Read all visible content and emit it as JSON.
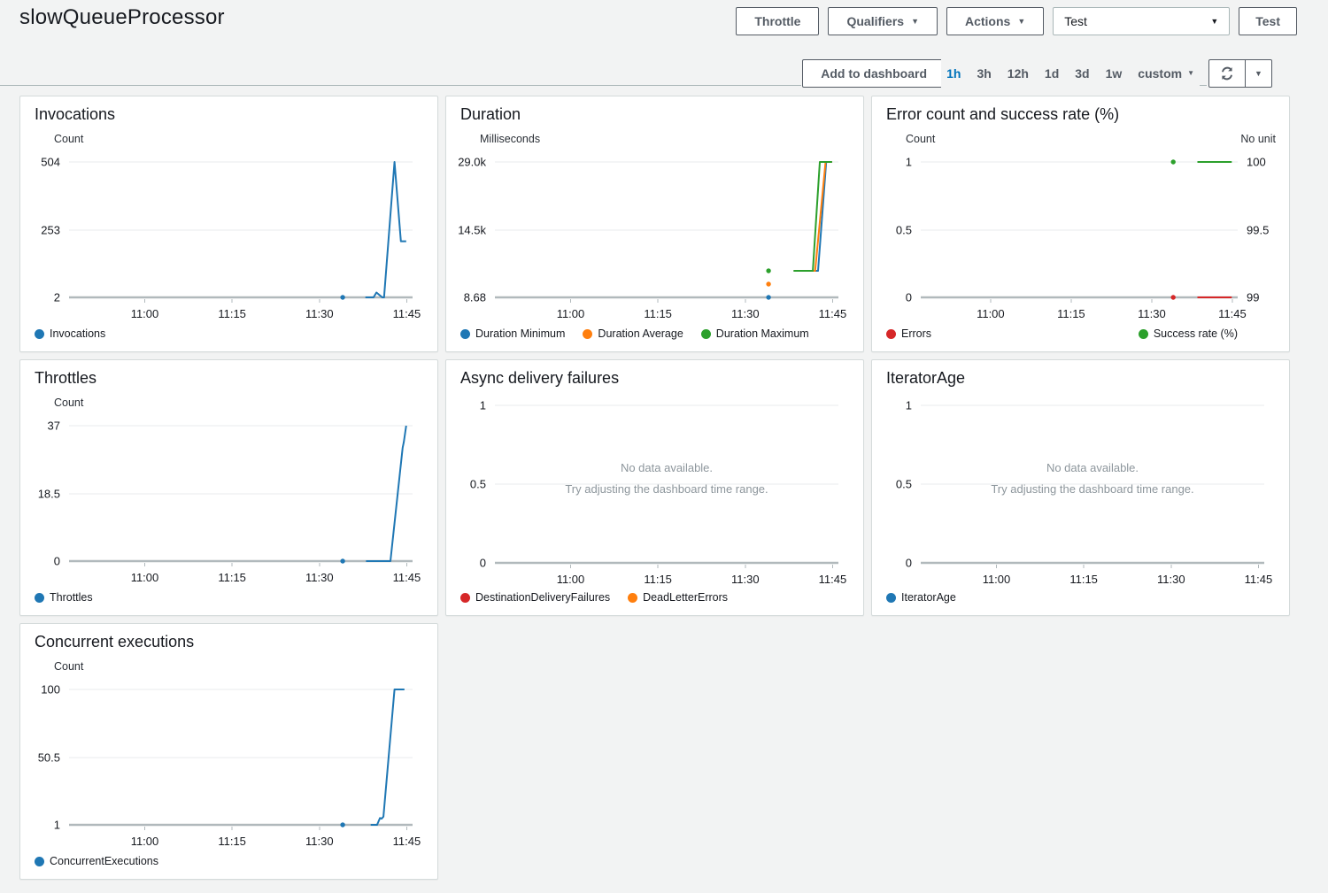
{
  "colors": {
    "accent_blue": "#0073bb",
    "series_blue": "#1f77b4",
    "series_orange": "#ff7f0e",
    "series_green": "#2ca02c",
    "series_red": "#d62728",
    "page_bg": "#f2f3f3",
    "panel_border": "#d5dbdb",
    "text_primary": "#16191f",
    "text_secondary": "#545b64",
    "grid_line": "#e9ebed",
    "axis_line": "#b1b9bc"
  },
  "icons": {
    "dropdown": "chevron-down",
    "refresh": "refresh"
  },
  "header": {
    "title": "slowQueueProcessor",
    "throttle_label": "Throttle",
    "qualifiers_label": "Qualifiers",
    "actions_label": "Actions",
    "test_event_value": "Test",
    "test_button_label": "Test"
  },
  "toolbar": {
    "add_to_dashboard_label": "Add to dashboard",
    "ranges": [
      "1h",
      "3h",
      "12h",
      "1d",
      "3d",
      "1w"
    ],
    "selected_range": "1h",
    "custom_label": "custom"
  },
  "charts": [
    {
      "type": "line",
      "title": "Invocations",
      "unit_left": "Count",
      "unit_right": null,
      "y_left": {
        "min": 2,
        "max": 504,
        "ticks": [
          "504",
          "253",
          "2"
        ]
      },
      "y_right": null,
      "x_ticks": [
        {
          "t": 0,
          "label": "11:00"
        },
        {
          "t": 15,
          "label": "11:15"
        },
        {
          "t": 30,
          "label": "11:30"
        },
        {
          "t": 45,
          "label": "11:45"
        }
      ],
      "no_data": null,
      "legend": [
        {
          "label": "Invocations",
          "color": "#1f77b4"
        }
      ],
      "legend_right": [],
      "series": [
        {
          "name": "Invocations",
          "color": "#1f77b4",
          "axis": "left",
          "points": [
            [
              37.9,
              2
            ],
            [
              39.3,
              2
            ],
            [
              39.8,
              20
            ],
            [
              40.8,
              2
            ],
            [
              41.1,
              2
            ],
            [
              42.9,
              504
            ],
            [
              44.0,
              210
            ],
            [
              44.9,
              210
            ]
          ],
          "dots": [
            [
              34,
              2
            ]
          ]
        }
      ]
    },
    {
      "type": "line",
      "title": "Duration",
      "unit_left": "Milliseconds",
      "unit_right": null,
      "y_left": {
        "min": 8.68,
        "max": 29000,
        "ticks": [
          "29.0k",
          "14.5k",
          "8.68"
        ]
      },
      "y_right": null,
      "x_ticks": [
        {
          "t": 0,
          "label": "11:00"
        },
        {
          "t": 15,
          "label": "11:15"
        },
        {
          "t": 30,
          "label": "11:30"
        },
        {
          "t": 45,
          "label": "11:45"
        }
      ],
      "no_data": null,
      "legend": [
        {
          "label": "Duration Minimum",
          "color": "#1f77b4"
        },
        {
          "label": "Duration Average",
          "color": "#ff7f0e"
        },
        {
          "label": "Duration Maximum",
          "color": "#2ca02c"
        }
      ],
      "legend_right": [],
      "series": [
        {
          "name": "Duration Minimum",
          "color": "#1f77b4",
          "axis": "left",
          "points": [
            [
              38.3,
              5700
            ],
            [
              42.5,
              5700
            ],
            [
              43.9,
              29000
            ],
            [
              44.9,
              29000
            ]
          ],
          "dots": [
            [
              34,
              8.68
            ]
          ]
        },
        {
          "name": "Duration Average",
          "color": "#ff7f0e",
          "axis": "left",
          "points": [
            [
              38.3,
              5700
            ],
            [
              42.0,
              5700
            ],
            [
              43.8,
              29000
            ],
            [
              44.9,
              29000
            ]
          ],
          "dots": [
            [
              34,
              2850
            ]
          ]
        },
        {
          "name": "Duration Maximum",
          "color": "#2ca02c",
          "axis": "left",
          "points": [
            [
              38.3,
              5700
            ],
            [
              41.6,
              5700
            ],
            [
              42.8,
              29000
            ],
            [
              44.9,
              29000
            ]
          ],
          "dots": [
            [
              34,
              5700
            ]
          ]
        }
      ]
    },
    {
      "type": "line",
      "title": "Error count and success rate (%)",
      "unit_left": "Count",
      "unit_right": "No unit",
      "y_left": {
        "min": 0,
        "max": 1,
        "ticks": [
          "1",
          "0.5",
          "0"
        ]
      },
      "y_right": {
        "min": 99,
        "max": 100,
        "ticks": [
          "100",
          "99.5",
          "99"
        ]
      },
      "x_ticks": [
        {
          "t": 0,
          "label": "11:00"
        },
        {
          "t": 15,
          "label": "11:15"
        },
        {
          "t": 30,
          "label": "11:30"
        },
        {
          "t": 45,
          "label": "11:45"
        }
      ],
      "no_data": null,
      "legend": [
        {
          "label": "Errors",
          "color": "#d62728"
        }
      ],
      "legend_right": [
        {
          "label": "Success rate (%)",
          "color": "#2ca02c"
        }
      ],
      "series": [
        {
          "name": "Errors",
          "color": "#d62728",
          "axis": "left",
          "points": [
            [
              38.5,
              0
            ],
            [
              44.9,
              0
            ]
          ],
          "dots": [
            [
              34,
              0
            ]
          ]
        },
        {
          "name": "Success rate (%)",
          "color": "#2ca02c",
          "axis": "right",
          "points": [
            [
              38.5,
              100
            ],
            [
              44.9,
              100
            ]
          ],
          "dots": [
            [
              34,
              100
            ]
          ]
        }
      ]
    },
    {
      "type": "line",
      "title": "Throttles",
      "unit_left": "Count",
      "unit_right": null,
      "y_left": {
        "min": 0,
        "max": 37,
        "ticks": [
          "37",
          "18.5",
          "0"
        ]
      },
      "y_right": null,
      "x_ticks": [
        {
          "t": 0,
          "label": "11:00"
        },
        {
          "t": 15,
          "label": "11:15"
        },
        {
          "t": 30,
          "label": "11:30"
        },
        {
          "t": 45,
          "label": "11:45"
        }
      ],
      "no_data": null,
      "legend": [
        {
          "label": "Throttles",
          "color": "#1f77b4"
        }
      ],
      "legend_right": [],
      "series": [
        {
          "name": "Throttles",
          "color": "#1f77b4",
          "axis": "left",
          "points": [
            [
              38.0,
              0
            ],
            [
              42.2,
              0
            ],
            [
              44.3,
              31
            ],
            [
              44.5,
              32.5
            ],
            [
              44.9,
              37
            ]
          ],
          "dots": [
            [
              34,
              0
            ]
          ]
        }
      ]
    },
    {
      "type": "line",
      "title": "Async delivery failures",
      "unit_left": null,
      "unit_right": null,
      "y_left": {
        "min": 0,
        "max": 1,
        "ticks": [
          "1",
          "0.5",
          "0"
        ]
      },
      "y_right": null,
      "x_ticks": [
        {
          "t": 0,
          "label": "11:00"
        },
        {
          "t": 15,
          "label": "11:15"
        },
        {
          "t": 30,
          "label": "11:30"
        },
        {
          "t": 45,
          "label": "11:45"
        }
      ],
      "no_data": {
        "line1": "No data available.",
        "line2": "Try adjusting the dashboard time range."
      },
      "legend": [
        {
          "label": "DestinationDeliveryFailures",
          "color": "#d62728"
        },
        {
          "label": "DeadLetterErrors",
          "color": "#ff7f0e"
        }
      ],
      "legend_right": [],
      "series": []
    },
    {
      "type": "line",
      "title": "IteratorAge",
      "unit_left": null,
      "unit_right": null,
      "y_left": {
        "min": 0,
        "max": 1,
        "ticks": [
          "1",
          "0.5",
          "0"
        ]
      },
      "y_right": null,
      "x_ticks": [
        {
          "t": 0,
          "label": "11:00"
        },
        {
          "t": 15,
          "label": "11:15"
        },
        {
          "t": 30,
          "label": "11:30"
        },
        {
          "t": 45,
          "label": "11:45"
        }
      ],
      "no_data": {
        "line1": "No data available.",
        "line2": "Try adjusting the dashboard time range."
      },
      "legend": [
        {
          "label": "IteratorAge",
          "color": "#1f77b4"
        }
      ],
      "legend_right": [],
      "series": []
    },
    {
      "type": "line",
      "title": "Concurrent executions",
      "unit_left": "Count",
      "unit_right": null,
      "y_left": {
        "min": 1,
        "max": 100,
        "ticks": [
          "100",
          "50.5",
          "1"
        ]
      },
      "y_right": null,
      "x_ticks": [
        {
          "t": 0,
          "label": "11:00"
        },
        {
          "t": 15,
          "label": "11:15"
        },
        {
          "t": 30,
          "label": "11:30"
        },
        {
          "t": 45,
          "label": "11:45"
        }
      ],
      "no_data": null,
      "legend": [
        {
          "label": "ConcurrentExecutions",
          "color": "#1f77b4"
        }
      ],
      "legend_right": [],
      "series": [
        {
          "name": "ConcurrentExecutions",
          "color": "#1f77b4",
          "axis": "left",
          "points": [
            [
              38.8,
              1
            ],
            [
              39.9,
              1
            ],
            [
              40.4,
              6
            ],
            [
              40.7,
              5.5
            ],
            [
              41.0,
              7
            ],
            [
              42.9,
              100
            ],
            [
              44.6,
              100
            ]
          ],
          "dots": [
            [
              34,
              1
            ]
          ]
        }
      ]
    }
  ]
}
